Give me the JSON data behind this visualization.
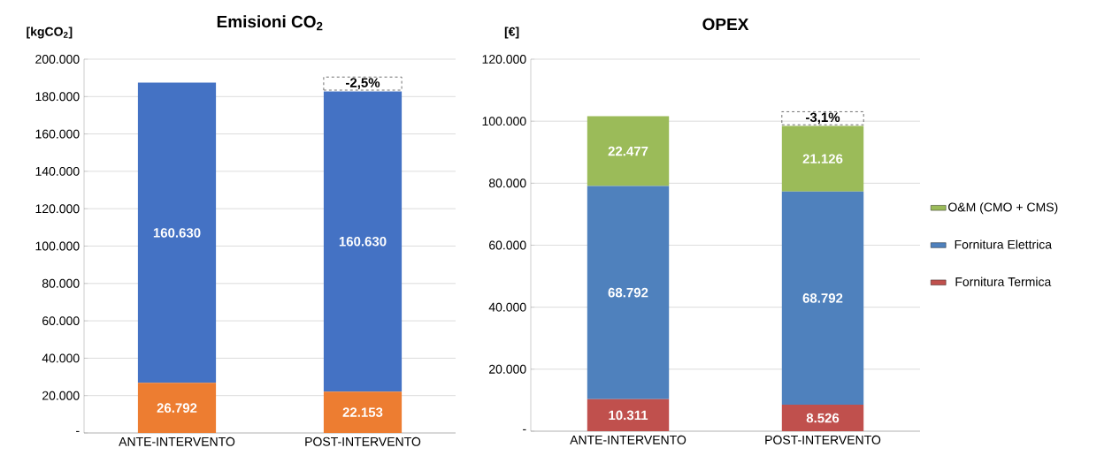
{
  "chart_data": [
    {
      "type": "bar",
      "stacked": true,
      "title": "Emisioni CO$_{2}$",
      "ylabel": "[kgCO$_{2}$]",
      "categories": [
        "ANTE-INTERVENTO",
        "POST-INTERVENTO"
      ],
      "series": [
        {
          "color": "#ed7d31",
          "values": [
            26792,
            22153
          ],
          "value_labels": [
            "26.792",
            "22.153"
          ]
        },
        {
          "color": "#4472c4",
          "values": [
            160630,
            160630
          ],
          "value_labels": [
            "160.630",
            "160.630"
          ]
        }
      ],
      "ylim": [
        0,
        200000
      ],
      "yticks": [
        {
          "value": 0,
          "label": "-"
        },
        {
          "value": 20000,
          "label": "20.000"
        },
        {
          "value": 40000,
          "label": "40.000"
        },
        {
          "value": 60000,
          "label": "60.000"
        },
        {
          "value": 80000,
          "label": "80.000"
        },
        {
          "value": 100000,
          "label": "100.000"
        },
        {
          "value": 120000,
          "label": "120.000"
        },
        {
          "value": 140000,
          "label": "140.000"
        },
        {
          "value": 160000,
          "label": "160.000"
        },
        {
          "value": 180000,
          "label": "180.000"
        },
        {
          "value": 200000,
          "label": "200.000"
        }
      ],
      "grid": "y",
      "legend": false,
      "annotations": [
        "-2,5%"
      ]
    },
    {
      "type": "bar",
      "stacked": true,
      "title": "OPEX",
      "ylabel": "[€]",
      "categories": [
        "ANTE-INTERVENTO",
        "POST-INTERVENTO"
      ],
      "series": [
        {
          "name": "Fornitura Termica",
          "color": "#c0504d",
          "values": [
            10311,
            8526
          ],
          "value_labels": [
            "10.311",
            "8.526"
          ]
        },
        {
          "name": "Fornitura Elettrica",
          "color": "#4f81bd",
          "values": [
            68792,
            68792
          ],
          "value_labels": [
            "68.792",
            "68.792"
          ]
        },
        {
          "name": "O&M (CMO + CMS)",
          "color": "#9bbb59",
          "values": [
            22477,
            21126
          ],
          "value_labels": [
            "22.477",
            "21.126"
          ]
        }
      ],
      "ylim": [
        0,
        120000
      ],
      "yticks": [
        {
          "value": 0,
          "label": "-"
        },
        {
          "value": 20000,
          "label": "20.000"
        },
        {
          "value": 40000,
          "label": "40.000"
        },
        {
          "value": 60000,
          "label": "60.000"
        },
        {
          "value": 80000,
          "label": "80.000"
        },
        {
          "value": 100000,
          "label": "100.000"
        },
        {
          "value": 120000,
          "label": "120.000"
        }
      ],
      "grid": "y",
      "legend": "right",
      "annotations": [
        "-3,1%"
      ]
    }
  ]
}
